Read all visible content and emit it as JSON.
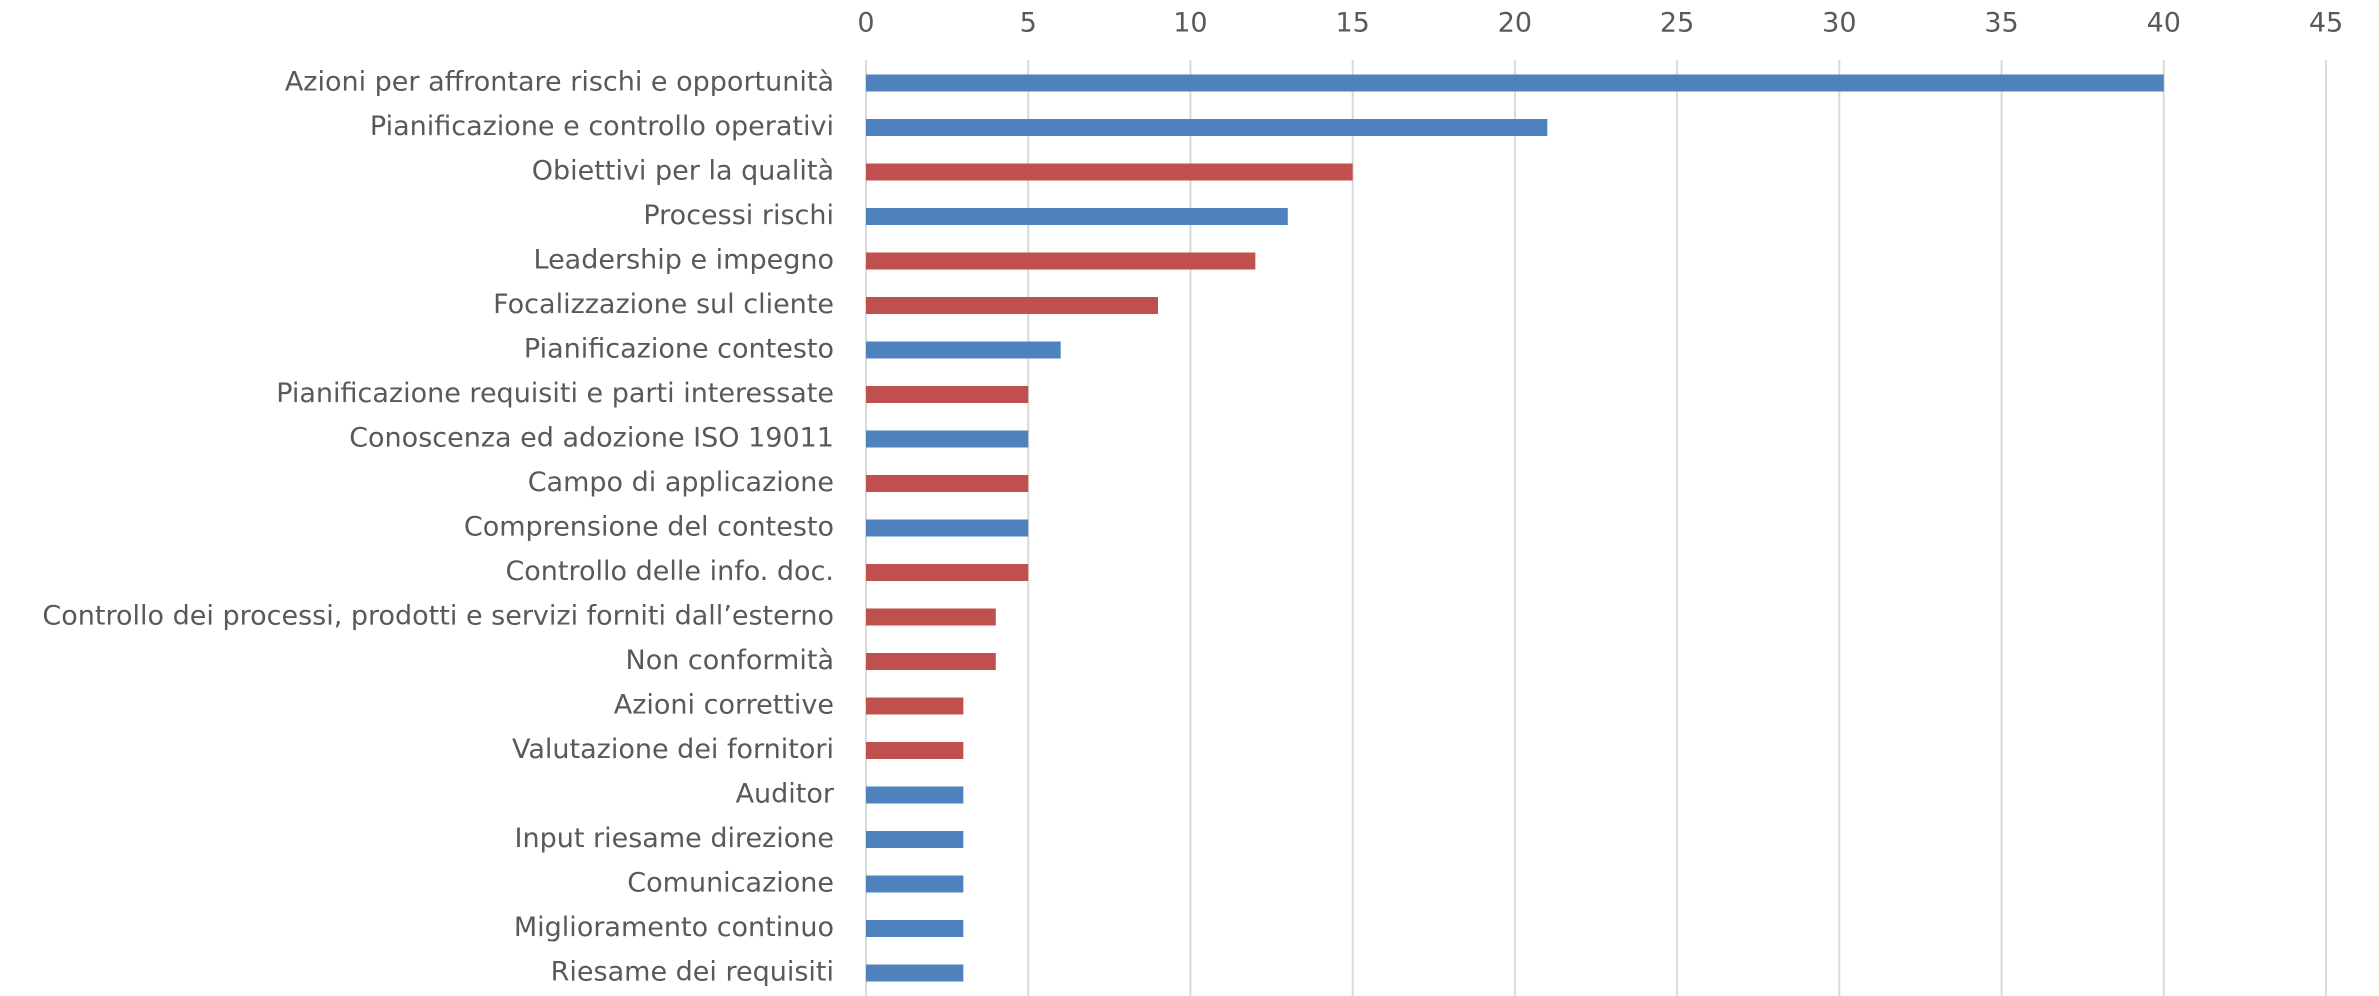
{
  "chart_data": {
    "type": "bar",
    "orientation": "horizontal",
    "categories": [
      "Azioni per affrontare rischi e opportunità",
      "Pianificazione e controllo operativi",
      "Obiettivi per la qualità",
      "Processi rischi",
      "Leadership e impegno",
      "Focalizzazione sul cliente",
      "Pianificazione contesto",
      "Pianificazione requisiti e parti interessate",
      "Conoscenza ed adozione ISO 19011",
      "Campo di applicazione",
      "Comprensione del contesto",
      "Controllo delle info. doc.",
      "Controllo dei processi, prodotti e servizi forniti dall’esterno",
      "Non conformità",
      "Azioni correttive",
      "Valutazione dei fornitori",
      "Auditor",
      "Input riesame direzione",
      "Comunicazione",
      "Miglioramento continuo",
      "Riesame dei requisiti"
    ],
    "values": [
      40,
      21,
      15,
      13,
      12,
      9,
      6,
      5,
      5,
      5,
      5,
      5,
      4,
      4,
      3,
      3,
      3,
      3,
      3,
      3,
      3
    ],
    "colors": [
      "#4f81bd",
      "#4f81bd",
      "#c0504d",
      "#4f81bd",
      "#c0504d",
      "#c0504d",
      "#4f81bd",
      "#c0504d",
      "#4f81bd",
      "#c0504d",
      "#4f81bd",
      "#c0504d",
      "#c0504d",
      "#c0504d",
      "#c0504d",
      "#c0504d",
      "#4f81bd",
      "#4f81bd",
      "#4f81bd",
      "#4f81bd",
      "#4f81bd"
    ],
    "xlim": [
      0,
      45
    ],
    "xticks": [
      0,
      5,
      10,
      15,
      20,
      25,
      30,
      35,
      40,
      45
    ],
    "grid": true
  }
}
